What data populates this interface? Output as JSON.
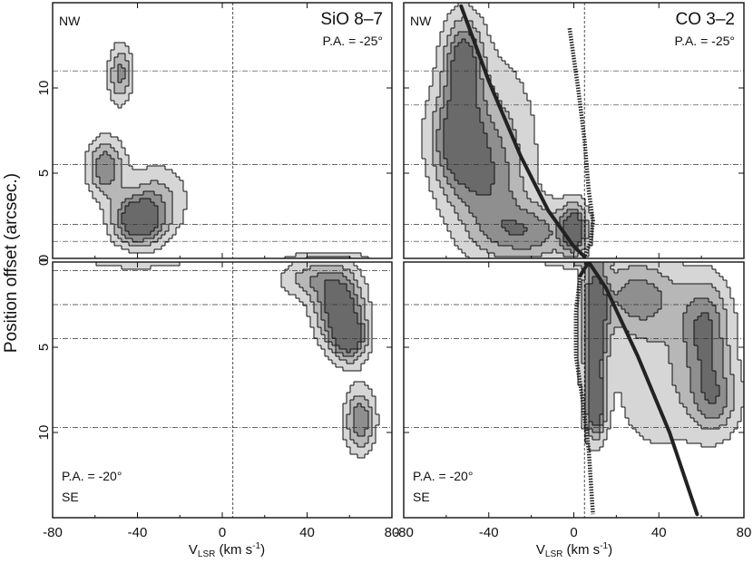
{
  "figure": {
    "ylabel": "Position offset (arcsec.)",
    "xlabel_main": "V",
    "xlabel_sub": "LSR",
    "xlabel_units": " (km s",
    "xlabel_exp": "-1",
    "xlabel_close": ")"
  },
  "chart_data": [
    {
      "id": "top-left",
      "type": "heatmap",
      "title": "SiO 8–7",
      "pa_label": "P.A. = -25°",
      "direction_label": "NW",
      "xlim": [
        -80,
        80
      ],
      "ylim": [
        0,
        15
      ],
      "yticks": [
        0,
        5,
        10
      ],
      "xticks": [
        -80,
        -40,
        0,
        40,
        80
      ],
      "xtick_labels_shown": false,
      "ytick_labels_shown": true,
      "vsys": 5,
      "ref_offsets": [
        11,
        5.5,
        2,
        1
      ],
      "blobs": [
        {
          "v": -48,
          "o": 10.8,
          "sv": 4,
          "so": 1.2,
          "a": 0.6
        },
        {
          "v": -55,
          "o": 5.3,
          "sv": 6,
          "so": 1.2,
          "a": 0.7
        },
        {
          "v": -40,
          "o": 2.2,
          "sv": 8,
          "so": 1.0,
          "a": 0.95
        },
        {
          "v": -30,
          "o": 3.5,
          "sv": 10,
          "so": 1.5,
          "a": 0.4
        },
        {
          "v": 50,
          "o": -0.2,
          "sv": 14,
          "so": 0.4,
          "a": 0.55
        }
      ],
      "contour_levels": [
        0.18,
        0.36,
        0.54,
        0.72
      ],
      "model_curves": []
    },
    {
      "id": "top-right",
      "type": "heatmap",
      "title": "CO 3–2",
      "pa_label": "P.A. = -25°",
      "direction_label": "NW",
      "xlim": [
        -80,
        80
      ],
      "ylim": [
        0,
        15
      ],
      "yticks": [
        0,
        5,
        10
      ],
      "xticks": [
        -80,
        -40,
        0,
        40,
        80
      ],
      "xtick_labels_shown": false,
      "ytick_labels_shown": false,
      "vsys": 5,
      "ref_offsets": [
        11,
        9,
        5.5,
        2,
        1
      ],
      "blobs": [
        {
          "v": -52,
          "o": 11.5,
          "sv": 6,
          "so": 1.8,
          "a": 0.7
        },
        {
          "v": -55,
          "o": 7,
          "sv": 8,
          "so": 2,
          "a": 0.65
        },
        {
          "v": -40,
          "o": 4,
          "sv": 12,
          "so": 2.5,
          "a": 0.45
        },
        {
          "v": -20,
          "o": 1.5,
          "sv": 14,
          "so": 1.2,
          "a": 0.5
        },
        {
          "v": 0,
          "o": 1.7,
          "sv": 4,
          "so": 1.0,
          "a": 0.75
        },
        {
          "v": -40,
          "o": 8,
          "sv": 15,
          "so": 3,
          "a": 0.25
        }
      ],
      "contour_levels": [
        0.12,
        0.28,
        0.44,
        0.6
      ],
      "model_curves": [
        {
          "style": "solid",
          "points": [
            [
              -53,
              14.8
            ],
            [
              -40,
              10.4
            ],
            [
              -25,
              6
            ],
            [
              -12,
              2.8
            ],
            [
              0,
              0.7
            ],
            [
              5,
              0.1
            ]
          ]
        },
        {
          "style": "dotted",
          "points": [
            [
              -2,
              13.5
            ],
            [
              2,
              10
            ],
            [
              5,
              7
            ],
            [
              7,
              4
            ],
            [
              9,
              2.2
            ],
            [
              8,
              1
            ],
            [
              5,
              0.1
            ]
          ]
        }
      ]
    },
    {
      "id": "bottom-left",
      "type": "heatmap",
      "title": "",
      "pa_label": "P.A. = -20°",
      "direction_label": "SE",
      "xlim": [
        -80,
        80
      ],
      "ylim": [
        0,
        15
      ],
      "yticks": [
        0,
        5,
        10
      ],
      "xticks": [
        -80,
        -40,
        0,
        40,
        80
      ],
      "xtick_labels_shown": true,
      "ytick_labels_shown": true,
      "vsys": 5,
      "ref_offsets": [
        0.5,
        2.5,
        4.5,
        9.7
      ],
      "blobs": [
        {
          "v": -40,
          "o": -0.2,
          "sv": 18,
          "so": 0.4,
          "a": 0.45
        },
        {
          "v": 55,
          "o": 2.5,
          "sv": 8,
          "so": 1.5,
          "a": 0.9
        },
        {
          "v": 60,
          "o": 4.5,
          "sv": 6,
          "so": 1.0,
          "a": 0.75
        },
        {
          "v": 65,
          "o": 9.3,
          "sv": 5,
          "so": 1.3,
          "a": 0.7
        },
        {
          "v": 40,
          "o": 1,
          "sv": 10,
          "so": 0.8,
          "a": 0.4
        }
      ],
      "contour_levels": [
        0.18,
        0.36,
        0.54,
        0.72
      ],
      "model_curves": []
    },
    {
      "id": "bottom-right",
      "type": "heatmap",
      "title": "",
      "pa_label": "P.A. = -20°",
      "direction_label": "SE",
      "xlim": [
        -80,
        80
      ],
      "ylim": [
        0,
        15
      ],
      "yticks": [
        0,
        5,
        10
      ],
      "xticks": [
        -80,
        -40,
        0,
        40,
        80
      ],
      "xtick_labels_shown": true,
      "ytick_labels_shown": false,
      "vsys": 5,
      "ref_offsets": [
        0,
        2.5,
        4.5,
        9.7
      ],
      "blobs": [
        {
          "v": 10,
          "o": 4,
          "sv": 4,
          "so": 3,
          "a": 0.8
        },
        {
          "v": 10,
          "o": 8.5,
          "sv": 3,
          "so": 1.2,
          "a": 0.7
        },
        {
          "v": 30,
          "o": 2,
          "sv": 14,
          "so": 1.5,
          "a": 0.5
        },
        {
          "v": 62,
          "o": 4,
          "sv": 8,
          "so": 2,
          "a": 0.6
        },
        {
          "v": 66,
          "o": 8,
          "sv": 8,
          "so": 1.5,
          "a": 0.5
        },
        {
          "v": 40,
          "o": 7,
          "sv": 15,
          "so": 3,
          "a": 0.25
        },
        {
          "v": 0,
          "o": -0.3,
          "sv": 12,
          "so": 0.4,
          "a": 0.4
        }
      ],
      "contour_levels": [
        0.12,
        0.28,
        0.44,
        0.6
      ],
      "model_curves": [
        {
          "style": "solid",
          "points": [
            [
              3,
              0.8
            ],
            [
              7,
              0
            ],
            [
              15,
              1.5
            ],
            [
              30,
              5.5
            ],
            [
              45,
              10
            ],
            [
              58,
              14.8
            ]
          ]
        },
        {
          "style": "dotted",
          "points": [
            [
              3,
              0.8
            ],
            [
              1,
              3
            ],
            [
              1,
              5.5
            ],
            [
              4,
              8
            ],
            [
              7,
              11
            ],
            [
              9,
              14.8
            ]
          ]
        }
      ]
    }
  ]
}
